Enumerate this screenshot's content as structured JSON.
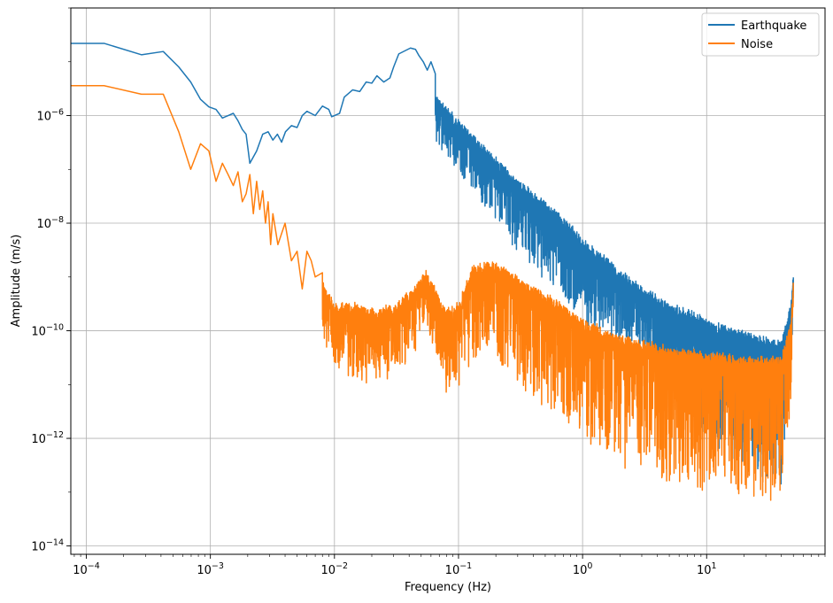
{
  "chart_data": {
    "type": "line",
    "title": "",
    "xlabel": "Frequency (Hz)",
    "ylabel": "Amplitude (m/s)",
    "xscale": "log",
    "yscale": "log",
    "xlim": [
      7.5e-05,
      90
    ],
    "ylim": [
      7e-15,
      0.0001
    ],
    "grid": true,
    "legend": "top-right",
    "x_ticks": [
      {
        "value": 0.0001,
        "base": "10",
        "exp": "−4"
      },
      {
        "value": 0.001,
        "base": "10",
        "exp": "−3"
      },
      {
        "value": 0.01,
        "base": "10",
        "exp": "−2"
      },
      {
        "value": 0.1,
        "base": "10",
        "exp": "−1"
      },
      {
        "value": 1,
        "base": "10",
        "exp": "0"
      },
      {
        "value": 10,
        "base": "10",
        "exp": "1"
      }
    ],
    "y_ticks": [
      {
        "value": 1e-14,
        "base": "10",
        "exp": "−14"
      },
      {
        "value": 1e-12,
        "base": "10",
        "exp": "−12"
      },
      {
        "value": 1e-10,
        "base": "10",
        "exp": "−10"
      },
      {
        "value": 1e-08,
        "base": "10",
        "exp": "−8"
      },
      {
        "value": 1e-06,
        "base": "10",
        "exp": "−6"
      }
    ],
    "series": [
      {
        "name": "Earthquake",
        "color": "#1f77b4",
        "x": [
          7.5e-05,
          0.000139,
          0.000278,
          0.000417,
          0.000556,
          0.000694,
          0.000833,
          0.000972,
          0.00111,
          0.00125,
          0.00139,
          0.00153,
          0.00167,
          0.00181,
          0.00194,
          0.00208,
          0.00236,
          0.00264,
          0.00292,
          0.00319,
          0.00347,
          0.00375,
          0.00403,
          0.0045,
          0.005,
          0.0055,
          0.006,
          0.007,
          0.008,
          0.009,
          0.0095,
          0.01,
          0.011,
          0.012,
          0.014,
          0.016,
          0.018,
          0.02,
          0.022,
          0.025,
          0.028,
          0.03,
          0.033,
          0.037,
          0.041,
          0.045,
          0.048,
          0.052,
          0.056,
          0.06,
          0.065
        ],
        "y": [
          2.2e-05,
          2.2e-05,
          1.35e-05,
          1.55e-05,
          8e-06,
          4.2e-06,
          2e-06,
          1.45e-06,
          1.3e-06,
          9e-07,
          1e-06,
          1.1e-06,
          8e-07,
          5.5e-07,
          4.5e-07,
          1.3e-07,
          2.2e-07,
          4.5e-07,
          5e-07,
          3.5e-07,
          4.5e-07,
          3.2e-07,
          5e-07,
          6.5e-07,
          6e-07,
          1e-06,
          1.2e-06,
          1e-06,
          1.5e-06,
          1.3e-06,
          9.5e-07,
          1e-06,
          1.1e-06,
          2.2e-06,
          3e-06,
          2.8e-06,
          4.2e-06,
          4e-06,
          5.5e-06,
          4.2e-06,
          5e-06,
          8e-06,
          1.4e-05,
          1.6e-05,
          1.8e-05,
          1.7e-05,
          1.3e-05,
          1e-05,
          7e-06,
          1e-05,
          6e-06
        ],
        "noisy_x": [
          0.065,
          0.1,
          0.2,
          0.3,
          0.5,
          0.8,
          1,
          1.5,
          2,
          3,
          5,
          8,
          10,
          15,
          20,
          30,
          40,
          48,
          50
        ],
        "noisy_y": [
          1.5e-06,
          5e-07,
          1e-07,
          4e-08,
          1.5e-08,
          6e-09,
          3e-09,
          1.5e-09,
          8e-10,
          4e-10,
          2e-10,
          1.3e-10,
          1e-10,
          7e-11,
          6e-11,
          4.5e-11,
          4e-11,
          2e-10,
          8e-10
        ],
        "noise_spread_decades": [
          0.6,
          0.7,
          0.9,
          1.1,
          1.2,
          1.3,
          1.3,
          1.2,
          1.1,
          1,
          1.2,
          1.8,
          2,
          2.2,
          2.3,
          2.4,
          2.5,
          1,
          0.3
        ]
      },
      {
        "name": "Noise",
        "color": "#ff7f0e",
        "x": [
          7.5e-05,
          0.000139,
          0.000278,
          0.000417,
          0.000556,
          0.000694,
          0.000833,
          0.000972,
          0.00111,
          0.00125,
          0.00139,
          0.00153,
          0.00167,
          0.00181,
          0.00194,
          0.00208,
          0.00222,
          0.00236,
          0.0025,
          0.00264,
          0.00278,
          0.00292,
          0.00306,
          0.00319,
          0.0035,
          0.004,
          0.0045,
          0.005,
          0.0055,
          0.006,
          0.0065,
          0.007,
          0.008
        ],
        "y": [
          3.6e-06,
          3.6e-06,
          2.5e-06,
          2.5e-06,
          5e-07,
          1e-07,
          3e-07,
          2.2e-07,
          6e-08,
          1.3e-07,
          8e-08,
          5e-08,
          9e-08,
          2.5e-08,
          3.5e-08,
          8e-08,
          1.5e-08,
          6e-08,
          1.8e-08,
          4e-08,
          1e-08,
          2.5e-08,
          4e-09,
          1.5e-08,
          4e-09,
          1e-08,
          2e-09,
          3e-09,
          6e-10,
          3e-09,
          2e-09,
          1e-09,
          1.2e-09
        ],
        "noisy_x": [
          0.008,
          0.01,
          0.015,
          0.02,
          0.03,
          0.045,
          0.055,
          0.065,
          0.08,
          0.1,
          0.13,
          0.2,
          0.3,
          0.5,
          0.8,
          1,
          2,
          5,
          10,
          20,
          40,
          48,
          50
        ],
        "noisy_y": [
          5e-10,
          2e-10,
          2e-10,
          1.5e-10,
          2e-10,
          4e-10,
          8e-10,
          4e-10,
          1.5e-10,
          2e-10,
          1e-09,
          1.2e-09,
          6e-10,
          3e-10,
          1.5e-10,
          1e-10,
          5e-11,
          3e-11,
          2.5e-11,
          2e-11,
          2e-11,
          1e-10,
          6e-10
        ],
        "noise_spread_decades": [
          0.9,
          1,
          1.2,
          1.2,
          1.1,
          1,
          0.8,
          1,
          1.3,
          1.4,
          1.5,
          1.6,
          1.7,
          1.9,
          2,
          2.1,
          2.2,
          2.3,
          2.4,
          2.4,
          2.5,
          1.5,
          0.5
        ]
      }
    ]
  }
}
